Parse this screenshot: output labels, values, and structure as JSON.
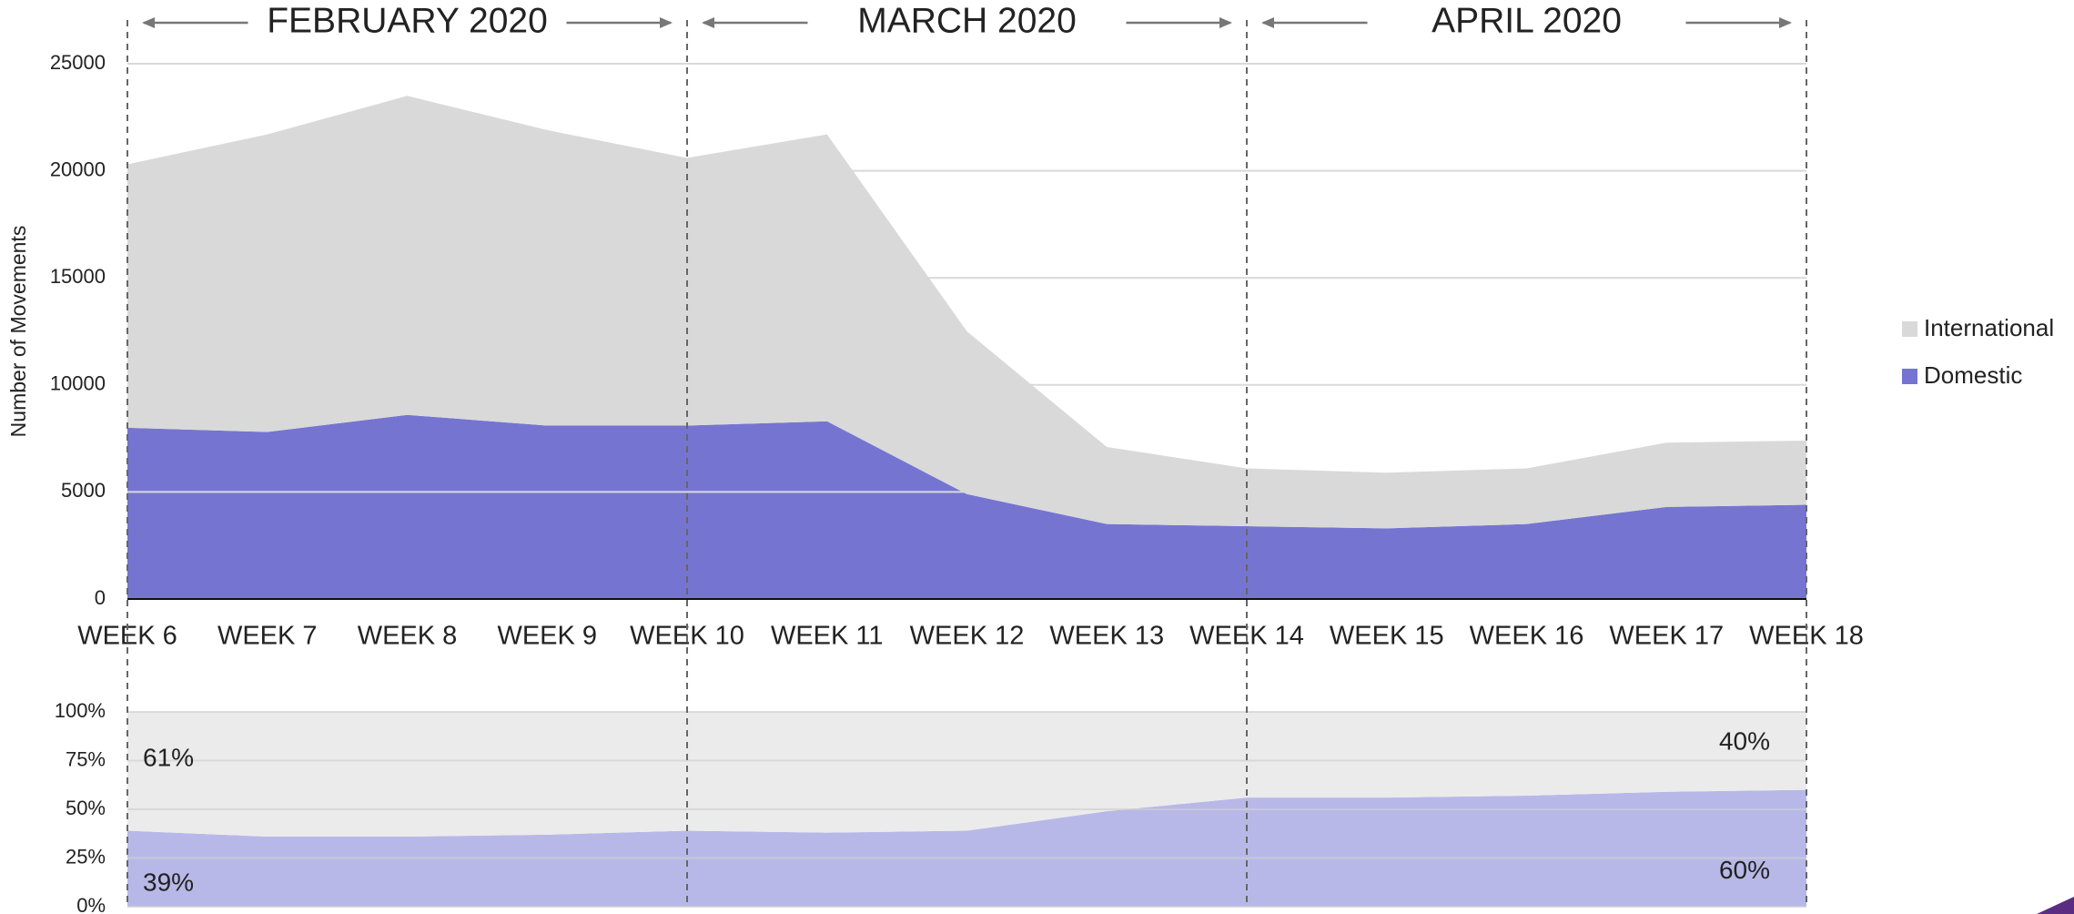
{
  "chart_data": [
    {
      "type": "area",
      "stacked": true,
      "y_label": "Number of Movements",
      "categories": [
        "WEEK 6",
        "WEEK 7",
        "WEEK 8",
        "WEEK 9",
        "WEEK 10",
        "WEEK 11",
        "WEEK 12",
        "WEEK 13",
        "WEEK 14",
        "WEEK 15",
        "WEEK 16",
        "WEEK 17",
        "WEEK 18"
      ],
      "series": [
        {
          "name": "Domestic",
          "color": "#7575d1",
          "values": [
            8000,
            7800,
            8600,
            8100,
            8100,
            8300,
            4900,
            3500,
            3400,
            3300,
            3500,
            4300,
            4400
          ]
        },
        {
          "name": "International",
          "color": "#d9d9d9",
          "values": [
            12300,
            13900,
            14900,
            13800,
            12500,
            13400,
            7600,
            3600,
            2700,
            2600,
            2600,
            3000,
            3000
          ]
        }
      ],
      "ylim": [
        0,
        25000
      ],
      "yticks": [
        0,
        5000,
        10000,
        15000,
        20000,
        25000
      ],
      "grid": true,
      "legend": "right",
      "annotations": [
        {
          "text": "FEBRUARY 2020",
          "from": "WEEK 6",
          "to": "WEEK 10"
        },
        {
          "text": "MARCH 2020",
          "from": "WEEK 10",
          "to": "WEEK 14"
        },
        {
          "text": "APRIL 2020",
          "from": "WEEK 14",
          "to": "WEEK 18"
        }
      ]
    },
    {
      "type": "area",
      "stacked": true,
      "series": [
        {
          "color": "#b8b8e8",
          "values": [
            39,
            36,
            36,
            37,
            39,
            38,
            39,
            49,
            56,
            56,
            57,
            59,
            60
          ],
          "value_labels": [
            "39%",
            null,
            null,
            null,
            null,
            null,
            null,
            null,
            null,
            null,
            null,
            null,
            "60%"
          ]
        },
        {
          "color": "#ebebeb",
          "values": [
            61,
            64,
            64,
            63,
            61,
            62,
            61,
            51,
            44,
            44,
            43,
            41,
            40
          ],
          "value_labels": [
            "61%",
            null,
            null,
            null,
            null,
            null,
            null,
            null,
            null,
            null,
            null,
            null,
            "40%"
          ]
        }
      ],
      "ylim": [
        0,
        100
      ],
      "yticks": [
        {
          "value": 0,
          "label": "0%"
        },
        {
          "value": 25,
          "label": "25%"
        },
        {
          "value": 50,
          "label": "50%"
        },
        {
          "value": 75,
          "label": "75%"
        },
        {
          "value": 100,
          "label": "100%"
        }
      ],
      "grid": true
    }
  ]
}
